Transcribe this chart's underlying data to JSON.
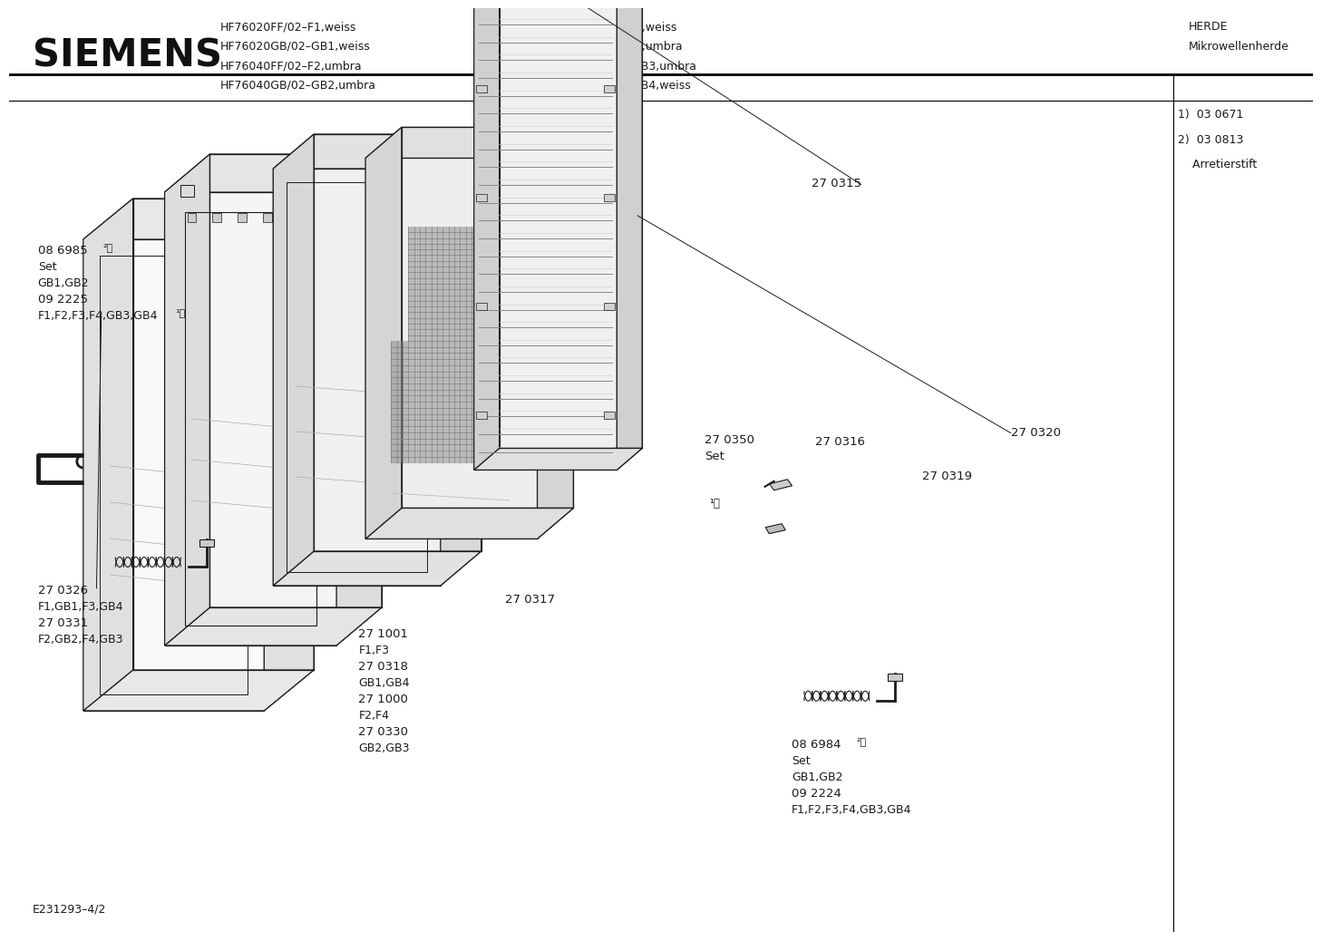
{
  "brand": "SIEMENS",
  "category_line1": "HERDE",
  "category_line2": "Mikrowellenherde",
  "header_models_left": [
    "HF76020FF/02–F1,weiss",
    "HF76020GB/02–GB1,weiss",
    "HF76040FF/02–F2,umbra",
    "HF76040GB/02–GB2,umbra"
  ],
  "header_models_right": [
    "HF76020FF/03–F3,weiss",
    "HF76040FF/03–F4,umbra",
    "HF76040GB/03–GB3,umbra",
    "HF76020GB/03–GB4,weiss"
  ],
  "footer_code": "E231293–4/2",
  "note_top_right": [
    "1)  03 0671",
    "2)  03 0813",
    "    Arretierstift"
  ],
  "bg_color": "#ffffff",
  "line_color": "#000000",
  "text_color": "#1a1a1a"
}
